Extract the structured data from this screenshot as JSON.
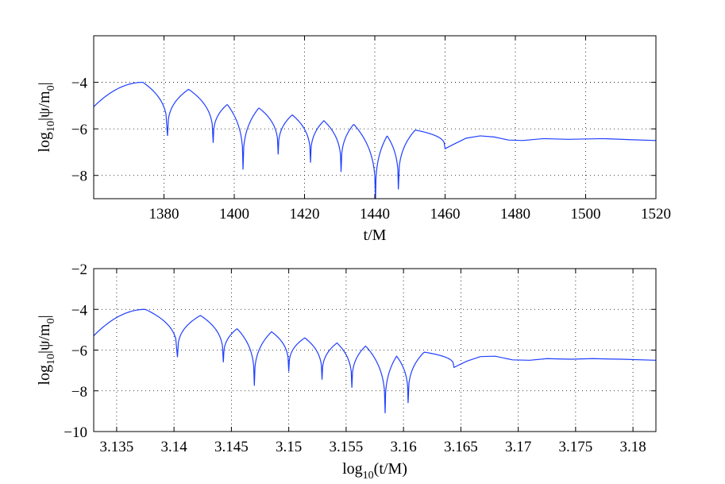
{
  "chart_data": [
    {
      "type": "line",
      "title": "",
      "xlabel": "t/M",
      "ylabel": "log10|ψ/m0|",
      "xlim": [
        1360,
        1520
      ],
      "ylim": [
        -9,
        -2
      ],
      "xticks": [
        1380,
        1400,
        1420,
        1440,
        1460,
        1480,
        1500,
        1520
      ],
      "xtick_labels": [
        "1380",
        "1400",
        "1420",
        "1440",
        "1460",
        "1480",
        "1500",
        "1520"
      ],
      "yticks": [
        -8,
        -6,
        -4
      ],
      "ytick_labels": [
        "−8",
        "−6",
        "−4"
      ],
      "grid": true,
      "color": "#1f3fff",
      "lobes": [
        {
          "from": 1360,
          "to": 1381,
          "peak_x": 1374,
          "peak": -4.0,
          "start": -5.05,
          "dip": -6.3
        },
        {
          "from": 1381,
          "to": 1394,
          "peak_x": 1387,
          "peak": -4.3,
          "dip": -6.6
        },
        {
          "from": 1394,
          "to": 1402.5,
          "peak_x": 1398,
          "peak": -4.95,
          "dip": -7.75
        },
        {
          "from": 1402.5,
          "to": 1412.5,
          "peak_x": 1407,
          "peak": -5.1,
          "dip": -7.1
        },
        {
          "from": 1412.5,
          "to": 1421.7,
          "peak_x": 1416.5,
          "peak": -5.4,
          "dip": -7.45
        },
        {
          "from": 1421.7,
          "to": 1430.4,
          "peak_x": 1425.5,
          "peak": -5.65,
          "dip": -7.85
        },
        {
          "from": 1430.4,
          "to": 1440.2,
          "peak_x": 1434,
          "peak": -5.8,
          "dip": -9.1
        },
        {
          "from": 1440.2,
          "to": 1446.7,
          "peak_x": 1443.5,
          "peak": -6.3,
          "dip": -8.6
        },
        {
          "from": 1446.7,
          "to": 1460,
          "peak_x": 1451.5,
          "peak": -6.05,
          "dip": -6.85
        }
      ],
      "tail": [
        [
          1460,
          -6.85
        ],
        [
          1463,
          -6.62
        ],
        [
          1466,
          -6.4
        ],
        [
          1470,
          -6.3
        ],
        [
          1474,
          -6.35
        ],
        [
          1478,
          -6.48
        ],
        [
          1482,
          -6.5
        ],
        [
          1488,
          -6.42
        ],
        [
          1495,
          -6.45
        ],
        [
          1505,
          -6.42
        ],
        [
          1512,
          -6.46
        ],
        [
          1520,
          -6.5
        ]
      ]
    },
    {
      "type": "line",
      "title": "",
      "xlabel": "log10(t/M)",
      "ylabel": "log10|ψ/m0|",
      "xlim": [
        3.133,
        3.182
      ],
      "ylim": [
        -10,
        -2
      ],
      "xticks": [
        3.135,
        3.14,
        3.145,
        3.15,
        3.155,
        3.16,
        3.165,
        3.17,
        3.175,
        3.18
      ],
      "xtick_labels": [
        "3.135",
        "3.14",
        "3.145",
        "3.15",
        "3.155",
        "3.16",
        "3.165",
        "3.17",
        "3.175",
        "3.18"
      ],
      "yticks": [
        -10,
        -8,
        -6,
        -4,
        -2
      ],
      "ytick_labels": [
        "−10",
        "−8",
        "−6",
        "−4",
        "−2"
      ],
      "grid": true,
      "color": "#1f3fff",
      "lobes": [
        {
          "from": 3.133,
          "to": 3.1403,
          "peak_x": 3.1375,
          "peak": -4.0,
          "start": -5.3,
          "dip": -6.35
        },
        {
          "from": 3.1403,
          "to": 3.1443,
          "peak_x": 3.1423,
          "peak": -4.3,
          "dip": -6.6
        },
        {
          "from": 3.1443,
          "to": 3.147,
          "peak_x": 3.1455,
          "peak": -4.95,
          "dip": -7.75
        },
        {
          "from": 3.147,
          "to": 3.15,
          "peak_x": 3.1485,
          "peak": -5.1,
          "dip": -7.05
        },
        {
          "from": 3.15,
          "to": 3.1529,
          "peak_x": 3.1514,
          "peak": -5.4,
          "dip": -7.45
        },
        {
          "from": 3.1529,
          "to": 3.1555,
          "peak_x": 3.1542,
          "peak": -5.65,
          "dip": -7.85
        },
        {
          "from": 3.1555,
          "to": 3.1584,
          "peak_x": 3.1567,
          "peak": -5.8,
          "dip": -9.1
        },
        {
          "from": 3.1584,
          "to": 3.1604,
          "peak_x": 3.1594,
          "peak": -6.3,
          "dip": -8.6
        },
        {
          "from": 3.1604,
          "to": 3.1644,
          "peak_x": 3.1618,
          "peak": -6.1,
          "dip": -6.85
        }
      ],
      "tail": [
        [
          3.1644,
          -6.85
        ],
        [
          3.1655,
          -6.55
        ],
        [
          3.1667,
          -6.32
        ],
        [
          3.168,
          -6.3
        ],
        [
          3.1695,
          -6.48
        ],
        [
          3.171,
          -6.5
        ],
        [
          3.1725,
          -6.42
        ],
        [
          3.1745,
          -6.45
        ],
        [
          3.1765,
          -6.42
        ],
        [
          3.179,
          -6.45
        ],
        [
          3.182,
          -6.5
        ]
      ]
    }
  ]
}
